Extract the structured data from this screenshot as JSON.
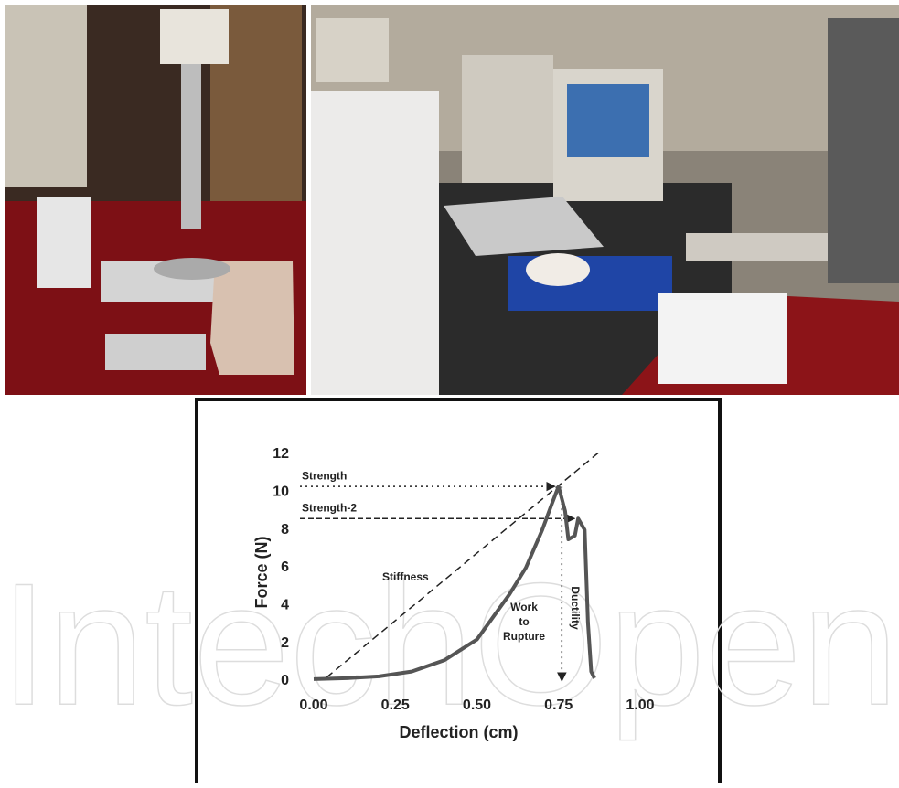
{
  "watermark": "IntechOpen",
  "chart_data": {
    "type": "line",
    "xlabel": "Deflection (cm)",
    "ylabel": "Force (N)",
    "xlim": [
      0,
      1
    ],
    "ylim": [
      0,
      12
    ],
    "xticks": [
      {
        "value": 0,
        "label": "0.00"
      },
      {
        "value": 0.25,
        "label": "0.25"
      },
      {
        "value": 0.5,
        "label": "0.50"
      },
      {
        "value": 0.75,
        "label": "0.75"
      },
      {
        "value": 1,
        "label": "1.00"
      }
    ],
    "yticks": [
      0,
      2,
      4,
      6,
      8,
      10,
      12
    ],
    "grid": false,
    "series": [
      {
        "color": "#555555",
        "x": [
          0.0,
          0.1,
          0.2,
          0.3,
          0.4,
          0.5,
          0.6,
          0.65,
          0.7,
          0.73,
          0.75,
          0.77,
          0.78,
          0.8,
          0.81,
          0.83,
          0.84,
          0.85,
          0.86
        ],
        "values": [
          0.1,
          0.15,
          0.25,
          0.5,
          1.1,
          2.2,
          4.6,
          6.0,
          8.0,
          9.4,
          10.3,
          9.0,
          7.5,
          7.7,
          8.6,
          8.0,
          3.1,
          0.5,
          0.15
        ]
      }
    ],
    "stiffness_line": {
      "label": "Stiffness",
      "x": [
        0.04,
        0.88
      ],
      "y": [
        0.2,
        12.2
      ]
    },
    "reference_lines": [
      {
        "label": "Strength",
        "y": 10.3,
        "x_end": 0.75,
        "style": "dotted"
      },
      {
        "label": "Strength-2",
        "y": 8.6,
        "x_end": 0.81,
        "style": "dashed"
      }
    ],
    "ductility": {
      "label": "Ductility",
      "x": 0.76,
      "y_start": 10.3,
      "y_end": 0
    },
    "work_label": [
      "Work",
      "to",
      "Rupture"
    ]
  }
}
